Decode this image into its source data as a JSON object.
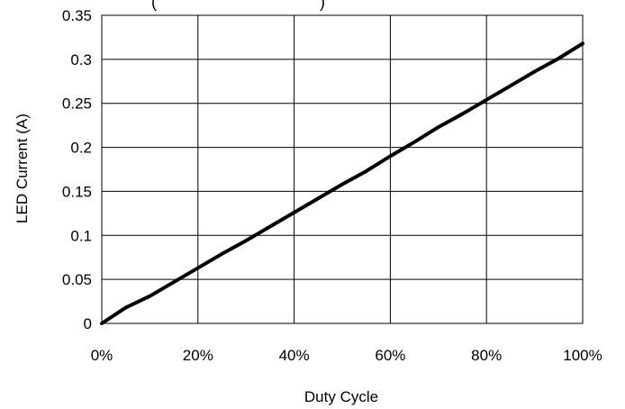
{
  "chart_data": {
    "type": "line",
    "title": "(",
    "title_end": ")",
    "xlabel": "Duty Cycle",
    "ylabel": "LED Current (A)",
    "xlim": [
      0,
      100
    ],
    "ylim": [
      0,
      0.35
    ],
    "x_ticks": [
      0,
      20,
      40,
      60,
      80,
      100
    ],
    "x_tick_labels": [
      "0%",
      "20%",
      "40%",
      "60%",
      "80%",
      "100%"
    ],
    "y_ticks": [
      0,
      0.05,
      0.1,
      0.15,
      0.2,
      0.25,
      0.3,
      0.35
    ],
    "y_tick_labels": [
      "0",
      "0.05",
      "0.1",
      "0.15",
      "0.2",
      "0.25",
      "0.3",
      "0.35"
    ],
    "grid": true,
    "series": [
      {
        "x": [
          0,
          5,
          10,
          15,
          20,
          25,
          30,
          35,
          40,
          45,
          50,
          55,
          60,
          65,
          70,
          75,
          80,
          85,
          90,
          95,
          100
        ],
        "values": [
          0,
          0.018,
          0.031,
          0.047,
          0.063,
          0.079,
          0.094,
          0.11,
          0.126,
          0.142,
          0.158,
          0.173,
          0.19,
          0.206,
          0.223,
          0.238,
          0.254,
          0.27,
          0.286,
          0.301,
          0.318
        ],
        "color": "#000000"
      }
    ]
  }
}
